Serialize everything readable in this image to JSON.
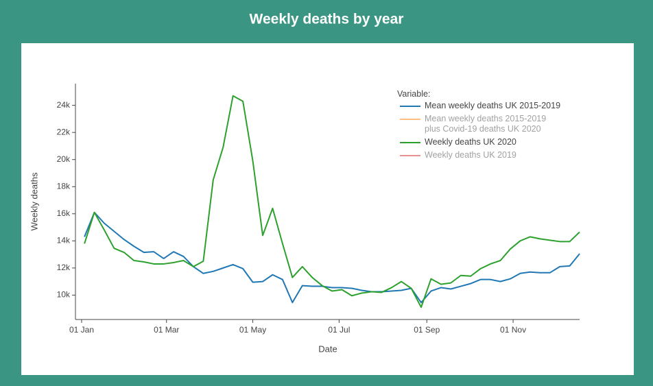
{
  "chart_data": {
    "type": "line",
    "title": "Weekly deaths by year",
    "x_label": "Date",
    "y_label": "Weekly deaths",
    "legend_title": "Variable:",
    "legend_position": "upper right",
    "grid": false,
    "x": [
      "03 Jan",
      "10 Jan",
      "17 Jan",
      "24 Jan",
      "31 Jan",
      "07 Feb",
      "14 Feb",
      "21 Feb",
      "28 Feb",
      "06 Mar",
      "13 Mar",
      "20 Mar",
      "27 Mar",
      "03 Apr",
      "10 Apr",
      "17 Apr",
      "24 Apr",
      "01 May",
      "08 May",
      "15 May",
      "22 May",
      "29 May",
      "05 Jun",
      "12 Jun",
      "19 Jun",
      "26 Jun",
      "03 Jul",
      "10 Jul",
      "17 Jul",
      "24 Jul",
      "31 Jul",
      "07 Aug",
      "14 Aug",
      "21 Aug",
      "28 Aug",
      "04 Sep",
      "11 Sep",
      "18 Sep",
      "25 Sep",
      "02 Oct",
      "09 Oct",
      "16 Oct",
      "23 Oct",
      "30 Oct",
      "06 Nov",
      "13 Nov",
      "20 Nov",
      "27 Nov",
      "04 Dec",
      "11 Dec",
      "18 Dec"
    ],
    "xlim": [
      "01 Jan",
      "18 Dec"
    ],
    "xticks": [
      "01 Jan",
      "01 Mar",
      "01 May",
      "01 Jul",
      "01 Sep",
      "01 Nov"
    ],
    "ylim": [
      8200,
      25600
    ],
    "yticks": [
      {
        "value": 10000,
        "label": "10k"
      },
      {
        "value": 12000,
        "label": "12k"
      },
      {
        "value": 14000,
        "label": "14k"
      },
      {
        "value": 16000,
        "label": "16k"
      },
      {
        "value": 18000,
        "label": "18k"
      },
      {
        "value": 20000,
        "label": "20k"
      },
      {
        "value": 22000,
        "label": "22k"
      },
      {
        "value": 24000,
        "label": "24k"
      }
    ],
    "series": [
      {
        "name": "Mean weekly deaths UK 2015-2019",
        "color": "#1f77b4",
        "visible": true,
        "values": [
          14300,
          16100,
          15300,
          14700,
          14100,
          13600,
          13150,
          13200,
          12700,
          13200,
          12850,
          12100,
          11600,
          11750,
          12000,
          12250,
          11950,
          10950,
          11000,
          11500,
          11150,
          9450,
          10700,
          10650,
          10650,
          10550,
          10550,
          10500,
          10350,
          10250,
          10250,
          10300,
          10350,
          10500,
          9450,
          10300,
          10550,
          10450,
          10650,
          10850,
          11150,
          11150,
          11000,
          11200,
          11600,
          11700,
          11650,
          11650,
          12100,
          12150,
          13050
        ]
      },
      {
        "name": "Mean weekly deaths 2015-2019\nplus Covid-19 deaths UK 2020",
        "color": "#ff7f0e",
        "visible": false
      },
      {
        "name": "Weekly deaths UK 2020",
        "color": "#2ca02c",
        "visible": true,
        "values": [
          13800,
          16100,
          14800,
          13450,
          13150,
          12550,
          12450,
          12300,
          12300,
          12400,
          12550,
          12100,
          12500,
          18500,
          20900,
          24700,
          24300,
          19900,
          14400,
          16400,
          13800,
          11300,
          12100,
          11300,
          10700,
          10300,
          10400,
          9950,
          10150,
          10250,
          10200,
          10550,
          11000,
          10500,
          9100,
          11200,
          10800,
          10900,
          11450,
          11400,
          11950,
          12300,
          12550,
          13400,
          14000,
          14300,
          14150,
          14050,
          13950,
          13950,
          14650
        ]
      },
      {
        "name": "Weekly deaths UK 2019",
        "color": "#d62728",
        "visible": false
      }
    ]
  }
}
